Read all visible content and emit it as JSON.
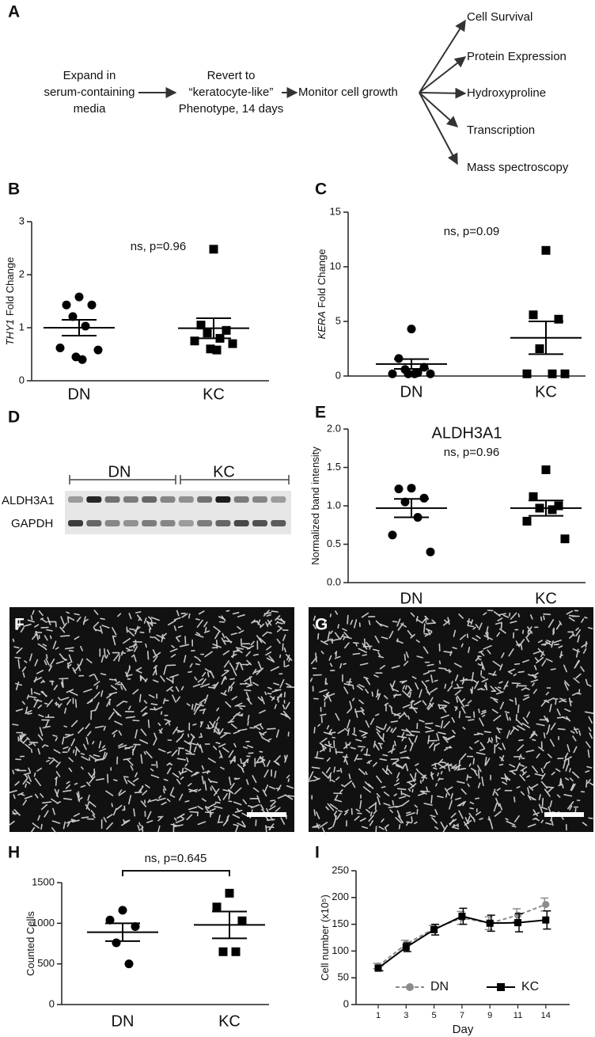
{
  "flow": {
    "panel_label": "A",
    "steps": [
      [
        "Expand in",
        "serum-containing",
        "media"
      ],
      [
        "Revert to",
        "“keratocyte-like”",
        "Phenotype, 14 days"
      ],
      [
        "Monitor cell growth"
      ]
    ],
    "outputs": [
      "Cell Survival",
      "Protein Expression",
      "Hydroxyproline",
      "Transcription",
      "Mass spectroscopy"
    ]
  },
  "chart_data": [
    {
      "type": "dot",
      "panel_label": "B",
      "ylabel_italic": "THY1",
      "ylabel": "Fold Change",
      "annotation": "ns, p=0.96",
      "categories": [
        "DN",
        "KC"
      ],
      "markers": [
        "circle",
        "square"
      ],
      "color": "#000000",
      "points": [
        [
          1.58,
          1.43,
          1.43,
          1.21,
          1.03,
          0.62,
          0.58,
          0.45,
          0.4
        ],
        [
          2.48,
          1.05,
          0.95,
          0.9,
          0.8,
          0.75,
          0.7,
          0.6,
          0.58
        ]
      ],
      "mean": [
        1.0,
        0.99
      ],
      "sem": [
        0.15,
        0.19
      ],
      "ylim": [
        0,
        3
      ],
      "yticks": [
        0,
        1,
        2,
        3
      ]
    },
    {
      "type": "dot",
      "panel_label": "C",
      "ylabel_italic": "KERA",
      "ylabel": "Fold Change",
      "annotation": "ns, p=0.09",
      "categories": [
        "DN",
        "KC"
      ],
      "markers": [
        "circle",
        "square"
      ],
      "color": "#000000",
      "points": [
        [
          4.3,
          1.6,
          0.8,
          0.6,
          0.3,
          0.2,
          0.2,
          0.2,
          0.2
        ],
        [
          11.5,
          5.6,
          5.2,
          2.5,
          0.2,
          0.2,
          0.2
        ]
      ],
      "mean": [
        1.1,
        3.5
      ],
      "sem": [
        0.45,
        1.5
      ],
      "ylim": [
        0,
        15
      ],
      "yticks": [
        0,
        5,
        10,
        15
      ]
    },
    {
      "type": "dot",
      "panel_label": "E",
      "title": "ALDH3A1",
      "ylabel": "Normalized band intensity",
      "annotation": "ns, p=0.96",
      "categories": [
        "DN",
        "KC"
      ],
      "markers": [
        "circle",
        "square"
      ],
      "color": "#000000",
      "points": [
        [
          1.23,
          1.22,
          1.1,
          1.05,
          0.85,
          0.62,
          0.4
        ],
        [
          1.47,
          1.12,
          1.0,
          0.97,
          0.95,
          0.8,
          0.57
        ]
      ],
      "mean": [
        0.97,
        0.97
      ],
      "sem": [
        0.12,
        0.1
      ],
      "ylim": [
        0,
        2
      ],
      "yticks": [
        {
          "value": 0,
          "label": "0.0"
        },
        {
          "value": 0.5,
          "label": "0.5"
        },
        {
          "value": 1,
          "label": "1.0"
        },
        {
          "value": 1.5,
          "label": "1.5"
        },
        {
          "value": 2,
          "label": "2.0"
        }
      ]
    },
    {
      "type": "dot",
      "panel_label": "H",
      "ylabel": "Counted Cells",
      "annotation": "ns, p=0.645",
      "bracket": true,
      "categories": [
        "DN",
        "KC"
      ],
      "markers": [
        "circle",
        "square"
      ],
      "color": "#000000",
      "points": [
        [
          1160,
          1040,
          960,
          760,
          500
        ],
        [
          1370,
          1200,
          1030,
          650,
          650
        ]
      ],
      "mean": [
        890,
        980
      ],
      "sem": [
        110,
        165
      ],
      "ylim": [
        0,
        1500
      ],
      "yticks": [
        0,
        500,
        1000,
        1500
      ]
    },
    {
      "type": "line",
      "panel_label": "I",
      "ylabel": "Cell number (x10⁵)",
      "xlabel": "Day",
      "categories": [
        "1",
        "3",
        "5",
        "7",
        "9",
        "11",
        "14"
      ],
      "ylim": [
        0,
        250
      ],
      "yticks": [
        0,
        50,
        100,
        150,
        200,
        250
      ],
      "legend": "lower right",
      "series": [
        {
          "name": "DN",
          "color": "#8c8c8c",
          "linestyle": "dashed",
          "marker": "circle",
          "values": [
            72,
            113,
            142,
            162,
            152,
            167,
            187
          ],
          "errors": [
            5,
            7,
            6,
            12,
            12,
            12,
            12
          ]
        },
        {
          "name": "KC",
          "color": "#000000",
          "linestyle": "solid",
          "marker": "square",
          "values": [
            68,
            107,
            140,
            165,
            152,
            153,
            158
          ],
          "errors": [
            5,
            8,
            10,
            15,
            15,
            17,
            17
          ]
        }
      ]
    }
  ],
  "blot": {
    "panel_label": "D",
    "groups": [
      "DN",
      "KC"
    ],
    "rows": [
      "ALDH3A1",
      "GAPDH"
    ]
  },
  "images": [
    {
      "panel_label": "F"
    },
    {
      "panel_label": "G"
    }
  ]
}
